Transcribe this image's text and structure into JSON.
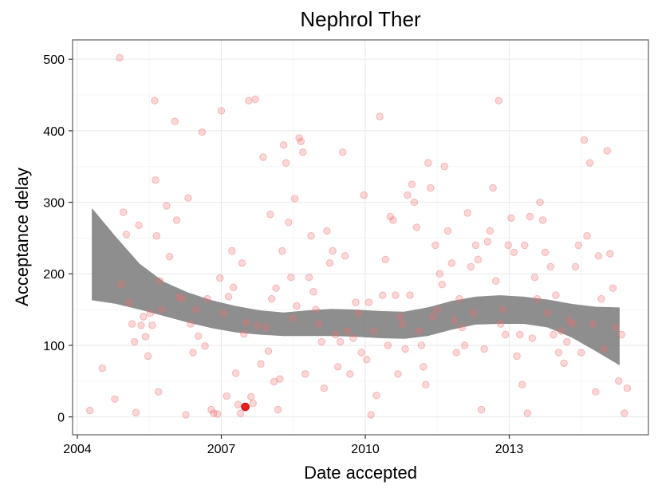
{
  "chart_data": {
    "type": "scatter",
    "title": "Nephrol Ther",
    "xlabel": "Date accepted",
    "ylabel": "Acceptance delay",
    "xlim": [
      2003.9,
      2015.9
    ],
    "ylim": [
      -25,
      527
    ],
    "x_ticks": [
      2004,
      2007,
      2010,
      2013
    ],
    "x_tick_labels": [
      "2004",
      "2007",
      "2010",
      "2013"
    ],
    "y_ticks": [
      0,
      100,
      200,
      300,
      400,
      500
    ],
    "y_tick_labels": [
      "0",
      "100",
      "200",
      "300",
      "400",
      "500"
    ],
    "grid": true,
    "legend": "none",
    "colors": {
      "points": "#f07070",
      "highlight": "#e8201e",
      "band": "#7a7a7a",
      "panel_border": "#7f7f7f",
      "grid_major": "#ebebeb",
      "grid_minor": "#f5f5f5"
    },
    "highlight_point": {
      "x": 2007.5,
      "y": 14
    },
    "band": {
      "x": [
        2004.3,
        2004.8,
        2005.3,
        2005.8,
        2006.3,
        2006.8,
        2007.3,
        2007.8,
        2008.3,
        2008.8,
        2009.3,
        2009.8,
        2010.3,
        2010.8,
        2011.3,
        2011.8,
        2012.3,
        2012.8,
        2013.3,
        2013.8,
        2014.3,
        2014.8,
        2015.3
      ],
      "lower": [
        163,
        158,
        150,
        141,
        132,
        124,
        118,
        115,
        113,
        113,
        113,
        112,
        110,
        109,
        113,
        122,
        129,
        130,
        130,
        125,
        111,
        92,
        72
      ],
      "upper": [
        292,
        252,
        214,
        189,
        174,
        163,
        155,
        149,
        146,
        149,
        151,
        150,
        148,
        147,
        153,
        162,
        168,
        170,
        168,
        164,
        158,
        154,
        153
      ]
    },
    "points": [
      [
        2004.26,
        9
      ],
      [
        2004.52,
        68
      ],
      [
        2004.78,
        25
      ],
      [
        2004.88,
        502
      ],
      [
        2004.91,
        185
      ],
      [
        2004.96,
        286
      ],
      [
        2005.02,
        255
      ],
      [
        2005.08,
        160
      ],
      [
        2005.14,
        130
      ],
      [
        2005.19,
        105
      ],
      [
        2005.22,
        6
      ],
      [
        2005.28,
        268
      ],
      [
        2005.33,
        128
      ],
      [
        2005.38,
        140
      ],
      [
        2005.42,
        112
      ],
      [
        2005.47,
        85
      ],
      [
        2005.52,
        145
      ],
      [
        2005.56,
        128
      ],
      [
        2005.61,
        442
      ],
      [
        2005.63,
        331
      ],
      [
        2005.65,
        253
      ],
      [
        2005.69,
        35
      ],
      [
        2005.72,
        190
      ],
      [
        2005.76,
        150
      ],
      [
        2005.86,
        295
      ],
      [
        2005.92,
        224
      ],
      [
        2006.03,
        413
      ],
      [
        2006.07,
        275
      ],
      [
        2006.12,
        168
      ],
      [
        2006.18,
        165
      ],
      [
        2006.26,
        3
      ],
      [
        2006.31,
        306
      ],
      [
        2006.36,
        130
      ],
      [
        2006.41,
        90
      ],
      [
        2006.47,
        150
      ],
      [
        2006.52,
        113
      ],
      [
        2006.6,
        398
      ],
      [
        2006.66,
        99
      ],
      [
        2006.71,
        165
      ],
      [
        2006.79,
        10
      ],
      [
        2006.84,
        5
      ],
      [
        2006.92,
        4
      ],
      [
        2006.97,
        194
      ],
      [
        2007.0,
        428
      ],
      [
        2007.05,
        145
      ],
      [
        2007.11,
        29
      ],
      [
        2007.15,
        168
      ],
      [
        2007.22,
        232
      ],
      [
        2007.25,
        181
      ],
      [
        2007.3,
        61
      ],
      [
        2007.35,
        17
      ],
      [
        2007.4,
        5
      ],
      [
        2007.43,
        215
      ],
      [
        2007.47,
        116
      ],
      [
        2007.52,
        132
      ],
      [
        2007.57,
        442
      ],
      [
        2007.62,
        28
      ],
      [
        2007.66,
        19
      ],
      [
        2007.71,
        444
      ],
      [
        2007.75,
        128
      ],
      [
        2007.82,
        74
      ],
      [
        2007.87,
        363
      ],
      [
        2007.93,
        125
      ],
      [
        2007.98,
        92
      ],
      [
        2008.02,
        283
      ],
      [
        2008.05,
        165
      ],
      [
        2008.1,
        49
      ],
      [
        2008.14,
        180
      ],
      [
        2008.18,
        10
      ],
      [
        2008.22,
        53
      ],
      [
        2008.27,
        232
      ],
      [
        2008.3,
        380
      ],
      [
        2008.35,
        355
      ],
      [
        2008.4,
        272
      ],
      [
        2008.45,
        195
      ],
      [
        2008.49,
        138
      ],
      [
        2008.53,
        305
      ],
      [
        2008.57,
        155
      ],
      [
        2008.62,
        390
      ],
      [
        2008.66,
        385
      ],
      [
        2008.7,
        370
      ],
      [
        2008.75,
        60
      ],
      [
        2008.83,
        195
      ],
      [
        2008.87,
        253
      ],
      [
        2008.92,
        175
      ],
      [
        2008.97,
        150
      ],
      [
        2009.03,
        130
      ],
      [
        2009.09,
        105
      ],
      [
        2009.14,
        40
      ],
      [
        2009.2,
        260
      ],
      [
        2009.26,
        215
      ],
      [
        2009.32,
        232
      ],
      [
        2009.38,
        115
      ],
      [
        2009.43,
        70
      ],
      [
        2009.48,
        105
      ],
      [
        2009.53,
        370
      ],
      [
        2009.58,
        225
      ],
      [
        2009.63,
        120
      ],
      [
        2009.68,
        60
      ],
      [
        2009.75,
        110
      ],
      [
        2009.8,
        160
      ],
      [
        2009.86,
        145
      ],
      [
        2009.92,
        90
      ],
      [
        2009.97,
        310
      ],
      [
        2010.03,
        80
      ],
      [
        2010.07,
        160
      ],
      [
        2010.12,
        3
      ],
      [
        2010.18,
        120
      ],
      [
        2010.23,
        30
      ],
      [
        2010.3,
        420
      ],
      [
        2010.36,
        170
      ],
      [
        2010.42,
        220
      ],
      [
        2010.47,
        100
      ],
      [
        2010.52,
        280
      ],
      [
        2010.58,
        275
      ],
      [
        2010.63,
        170
      ],
      [
        2010.68,
        60
      ],
      [
        2010.73,
        140
      ],
      [
        2010.78,
        130
      ],
      [
        2010.83,
        95
      ],
      [
        2010.88,
        310
      ],
      [
        2010.93,
        170
      ],
      [
        2010.97,
        325
      ],
      [
        2011.02,
        300
      ],
      [
        2011.07,
        265
      ],
      [
        2011.12,
        120
      ],
      [
        2011.17,
        100
      ],
      [
        2011.21,
        70
      ],
      [
        2011.26,
        45
      ],
      [
        2011.31,
        355
      ],
      [
        2011.36,
        320
      ],
      [
        2011.41,
        140
      ],
      [
        2011.46,
        240
      ],
      [
        2011.5,
        150
      ],
      [
        2011.55,
        200
      ],
      [
        2011.6,
        185
      ],
      [
        2011.65,
        350
      ],
      [
        2011.72,
        260
      ],
      [
        2011.8,
        215
      ],
      [
        2011.85,
        135
      ],
      [
        2011.9,
        90
      ],
      [
        2011.96,
        165
      ],
      [
        2012.02,
        125
      ],
      [
        2012.07,
        100
      ],
      [
        2012.13,
        285
      ],
      [
        2012.2,
        210
      ],
      [
        2012.25,
        145
      ],
      [
        2012.3,
        240
      ],
      [
        2012.35,
        220
      ],
      [
        2012.42,
        10
      ],
      [
        2012.48,
        95
      ],
      [
        2012.55,
        245
      ],
      [
        2012.6,
        260
      ],
      [
        2012.66,
        320
      ],
      [
        2012.72,
        190
      ],
      [
        2012.78,
        442
      ],
      [
        2012.82,
        130
      ],
      [
        2012.87,
        150
      ],
      [
        2012.92,
        115
      ],
      [
        2012.98,
        240
      ],
      [
        2013.04,
        278
      ],
      [
        2013.1,
        230
      ],
      [
        2013.16,
        85
      ],
      [
        2013.22,
        115
      ],
      [
        2013.27,
        45
      ],
      [
        2013.32,
        240
      ],
      [
        2013.38,
        5
      ],
      [
        2013.43,
        280
      ],
      [
        2013.48,
        110
      ],
      [
        2013.53,
        195
      ],
      [
        2013.58,
        165
      ],
      [
        2013.64,
        300
      ],
      [
        2013.7,
        275
      ],
      [
        2013.75,
        230
      ],
      [
        2013.8,
        145
      ],
      [
        2013.86,
        210
      ],
      [
        2013.92,
        115
      ],
      [
        2013.97,
        170
      ],
      [
        2014.03,
        90
      ],
      [
        2014.08,
        120
      ],
      [
        2014.14,
        75
      ],
      [
        2014.2,
        105
      ],
      [
        2014.26,
        135
      ],
      [
        2014.32,
        130
      ],
      [
        2014.38,
        210
      ],
      [
        2014.44,
        240
      ],
      [
        2014.5,
        90
      ],
      [
        2014.56,
        387
      ],
      [
        2014.62,
        253
      ],
      [
        2014.68,
        355
      ],
      [
        2014.74,
        130
      ],
      [
        2014.8,
        35
      ],
      [
        2014.86,
        225
      ],
      [
        2014.92,
        165
      ],
      [
        2014.98,
        95
      ],
      [
        2015.04,
        372
      ],
      [
        2015.1,
        228
      ],
      [
        2015.16,
        180
      ],
      [
        2015.22,
        125
      ],
      [
        2015.28,
        50
      ],
      [
        2015.34,
        115
      ],
      [
        2015.4,
        5
      ],
      [
        2015.46,
        40
      ]
    ]
  }
}
